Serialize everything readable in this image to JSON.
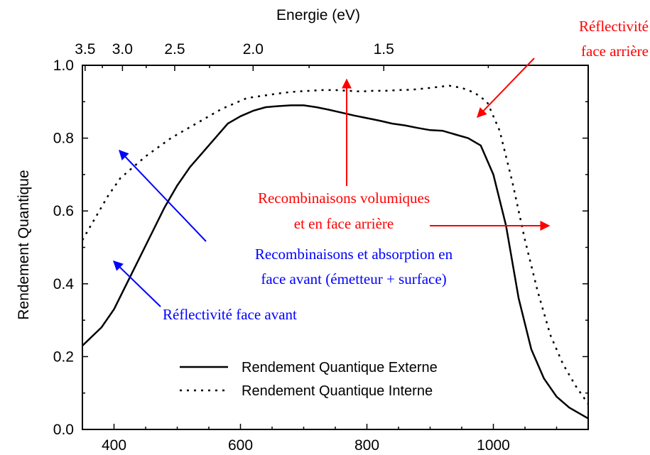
{
  "chart_data": {
    "type": "line",
    "ylabel": "Rendement Quantique",
    "top_axis_label": "Energie (eV)",
    "xlim": [
      350,
      1150
    ],
    "ylim": [
      0.0,
      1.0
    ],
    "x_ticks": [
      400,
      600,
      800,
      1000
    ],
    "x_tick_labels": [
      "400",
      "600",
      "800",
      "1000"
    ],
    "y_ticks": [
      0.0,
      0.2,
      0.4,
      0.6,
      0.8,
      1.0
    ],
    "y_tick_labels": [
      "0.0",
      "0.2",
      "0.4",
      "0.6",
      "0.8",
      "1.0"
    ],
    "top_ticks": [
      3.5,
      3.0,
      2.5,
      2.0,
      1.5
    ],
    "top_tick_labels": [
      "3.5",
      "3.0",
      "2.5",
      "2.0",
      "1.5"
    ],
    "legend_position": "bottom-right",
    "series": [
      {
        "name": "Rendement Quantique Externe",
        "style": "solid",
        "color": "#000000",
        "x": [
          350,
          380,
          400,
          420,
          440,
          460,
          480,
          500,
          520,
          540,
          560,
          580,
          600,
          620,
          640,
          660,
          680,
          700,
          720,
          740,
          760,
          780,
          800,
          820,
          840,
          860,
          880,
          900,
          920,
          940,
          960,
          980,
          1000,
          1020,
          1040,
          1060,
          1080,
          1100,
          1120,
          1150
        ],
        "y": [
          0.23,
          0.28,
          0.33,
          0.4,
          0.47,
          0.54,
          0.61,
          0.67,
          0.72,
          0.76,
          0.8,
          0.84,
          0.86,
          0.875,
          0.885,
          0.888,
          0.89,
          0.89,
          0.885,
          0.878,
          0.87,
          0.862,
          0.855,
          0.848,
          0.84,
          0.835,
          0.828,
          0.822,
          0.82,
          0.81,
          0.8,
          0.78,
          0.7,
          0.56,
          0.36,
          0.22,
          0.14,
          0.09,
          0.06,
          0.03
        ]
      },
      {
        "name": "Rendement Quantique Interne",
        "style": "dotted",
        "color": "#000000",
        "x": [
          350,
          370,
          390,
          410,
          430,
          450,
          470,
          490,
          510,
          530,
          550,
          570,
          590,
          610,
          630,
          650,
          670,
          690,
          710,
          730,
          750,
          770,
          790,
          810,
          830,
          850,
          870,
          890,
          910,
          930,
          950,
          970,
          990,
          1010,
          1030,
          1050,
          1070,
          1090,
          1110,
          1130,
          1150
        ],
        "y": [
          0.52,
          0.58,
          0.64,
          0.69,
          0.72,
          0.75,
          0.775,
          0.8,
          0.82,
          0.84,
          0.86,
          0.88,
          0.895,
          0.91,
          0.915,
          0.92,
          0.925,
          0.928,
          0.93,
          0.932,
          0.932,
          0.93,
          0.928,
          0.93,
          0.93,
          0.932,
          0.933,
          0.936,
          0.94,
          0.944,
          0.938,
          0.925,
          0.9,
          0.82,
          0.68,
          0.52,
          0.38,
          0.26,
          0.18,
          0.12,
          0.07
        ]
      }
    ],
    "annotations": [
      {
        "lines": [
          "Réflectivité",
          "face arrière"
        ],
        "color": "#ff0000"
      },
      {
        "lines": [
          "Recombinaisons volumiques",
          "et en face arrière"
        ],
        "color": "#ff0000"
      },
      {
        "lines": [
          "Recombinaisons et absorption en",
          "face avant (émetteur + surface)"
        ],
        "color": "#0000ff"
      },
      {
        "lines": [
          "Réflectivité face avant"
        ],
        "color": "#0000ff"
      }
    ]
  }
}
